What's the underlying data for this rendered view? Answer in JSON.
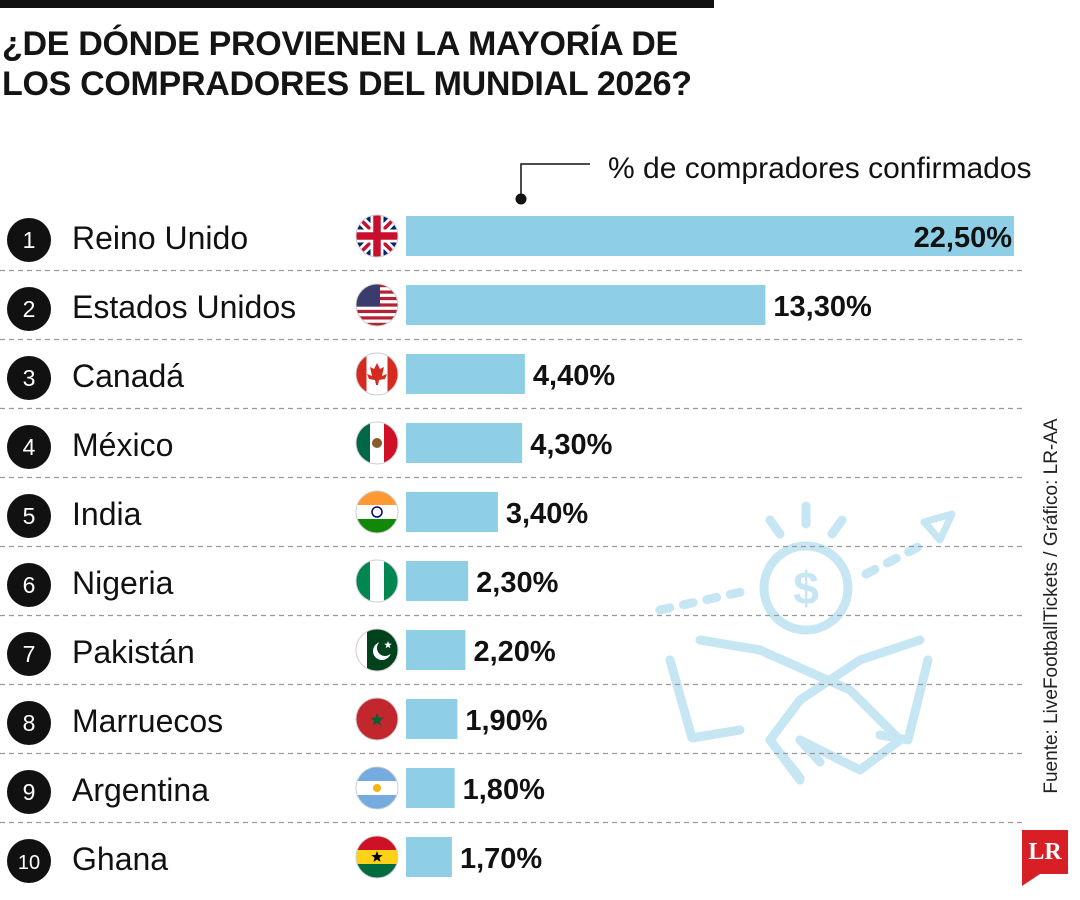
{
  "title": {
    "line1": "¿DE DÓNDE PROVIENEN LA MAYORÍA DE",
    "line2": "LOS COMPRADORES DEL MUNDIAL 2026?"
  },
  "legend_label": "% de compradores confirmados",
  "source": "Fuente: LiveFootballTickets / Gráfico: LR-AA",
  "logo_text": "LR",
  "colors": {
    "bar": "#8ecfe6",
    "badge": "#111111",
    "text": "#111111",
    "divider": "#9a9a9a",
    "illustration": "#c7e6f4",
    "logo": "#d81f26"
  },
  "chart_data": {
    "type": "bar",
    "orientation": "horizontal",
    "title": "¿DE DÓNDE PROVIENEN LA MAYORÍA DE LOS COMPRADORES DEL MUNDIAL 2026?",
    "value_label": "% de compradores confirmados",
    "xlim": [
      0,
      22.5
    ],
    "ranks": [
      "1",
      "2",
      "3",
      "4",
      "5",
      "6",
      "7",
      "8",
      "9",
      "10"
    ],
    "categories": [
      "Reino Unido",
      "Estados Unidos",
      "Canadá",
      "México",
      "India",
      "Nigeria",
      "Pakistán",
      "Marruecos",
      "Argentina",
      "Ghana"
    ],
    "values": [
      22.5,
      13.3,
      4.4,
      4.3,
      3.4,
      2.3,
      2.2,
      1.9,
      1.8,
      1.7
    ],
    "value_labels": [
      "22,50%",
      "13,30%",
      "4,40%",
      "4,30%",
      "3,40%",
      "2,30%",
      "2,20%",
      "1,90%",
      "1,80%",
      "1,70%"
    ],
    "flag_icons": [
      "uk-flag-icon",
      "usa-flag-icon",
      "canada-flag-icon",
      "mexico-flag-icon",
      "india-flag-icon",
      "nigeria-flag-icon",
      "pakistan-flag-icon",
      "morocco-flag-icon",
      "argentina-flag-icon",
      "ghana-flag-icon"
    ]
  }
}
